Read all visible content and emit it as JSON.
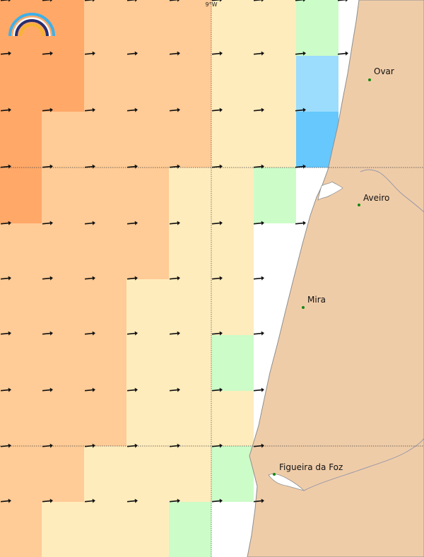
{
  "map": {
    "meridian_label": "9°W",
    "colors": {
      "land": "#efcca8",
      "coast": "#8f8f8f",
      "river": "#9a9aa8",
      "sea_white": "#ffffff",
      "grid": "#444444",
      "arrow": "#111111",
      "city_dot": "#118811"
    },
    "legend_colors": {
      "band_a": "#ffa868",
      "band_b": "#ffcb96",
      "band_c": "#ffecbc",
      "band_d": "#ccfcc8",
      "band_e": "#9cdcfc",
      "band_f": "#66c8fc"
    },
    "wind_direction": "east",
    "cities": [
      {
        "name": "Ovar",
        "data_name": "city-ovar"
      },
      {
        "name": "Aveiro",
        "data_name": "city-aveiro"
      },
      {
        "name": "Mira",
        "data_name": "city-mira"
      },
      {
        "name": "Figueira da Foz",
        "data_name": "city-figueira-da-foz"
      }
    ],
    "logo": {
      "name": "rainbow-logo-icon"
    }
  }
}
